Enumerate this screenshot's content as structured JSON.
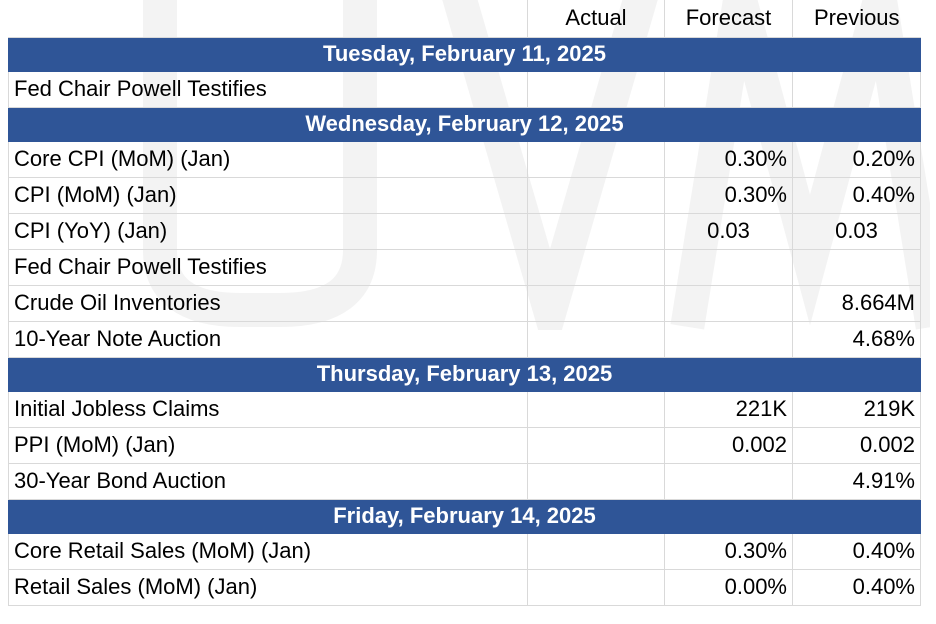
{
  "columns": {
    "actual": "Actual",
    "forecast": "Forecast",
    "previous": "Previous"
  },
  "days": [
    {
      "date": "Tuesday, February 11, 2025",
      "events": [
        {
          "name": "Fed Chair Powell Testifies",
          "actual": "",
          "forecast": "",
          "previous": ""
        }
      ]
    },
    {
      "date": "Wednesday, February 12, 2025",
      "events": [
        {
          "name": "Core CPI (MoM) (Jan)",
          "actual": "",
          "forecast": "0.30%",
          "previous": "0.20%"
        },
        {
          "name": "CPI (MoM) (Jan)",
          "actual": "",
          "forecast": "0.30%",
          "previous": "0.40%"
        },
        {
          "name": "CPI (YoY) (Jan)",
          "actual": "",
          "forecast": "0.03",
          "previous": "0.03"
        },
        {
          "name": "Fed Chair Powell Testifies",
          "actual": "",
          "forecast": "",
          "previous": ""
        },
        {
          "name": "Crude Oil Inventories",
          "actual": "",
          "forecast": "",
          "previous": "8.664M"
        },
        {
          "name": "10-Year Note Auction",
          "actual": "",
          "forecast": "",
          "previous": "4.68%"
        }
      ]
    },
    {
      "date": "Thursday, February 13, 2025",
      "events": [
        {
          "name": "Initial Jobless Claims",
          "actual": "",
          "forecast": "221K",
          "previous": "219K"
        },
        {
          "name": "PPI (MoM) (Jan)",
          "actual": "",
          "forecast": "0.002",
          "previous": "0.002"
        },
        {
          "name": "30-Year Bond Auction",
          "actual": "",
          "forecast": "",
          "previous": "4.91%"
        }
      ]
    },
    {
      "date": "Friday, February 14, 2025",
      "events": [
        {
          "name": "Core Retail Sales (MoM) (Jan)",
          "actual": "",
          "forecast": "0.30%",
          "previous": "0.40%"
        },
        {
          "name": "Retail Sales (MoM) (Jan)",
          "actual": "",
          "forecast": "0.00%",
          "previous": "0.40%"
        }
      ]
    }
  ],
  "colors": {
    "date_band": "#2f5597",
    "date_text": "#ffffff",
    "grid": "#d9d9d9",
    "watermark": "#f3f3f3"
  }
}
